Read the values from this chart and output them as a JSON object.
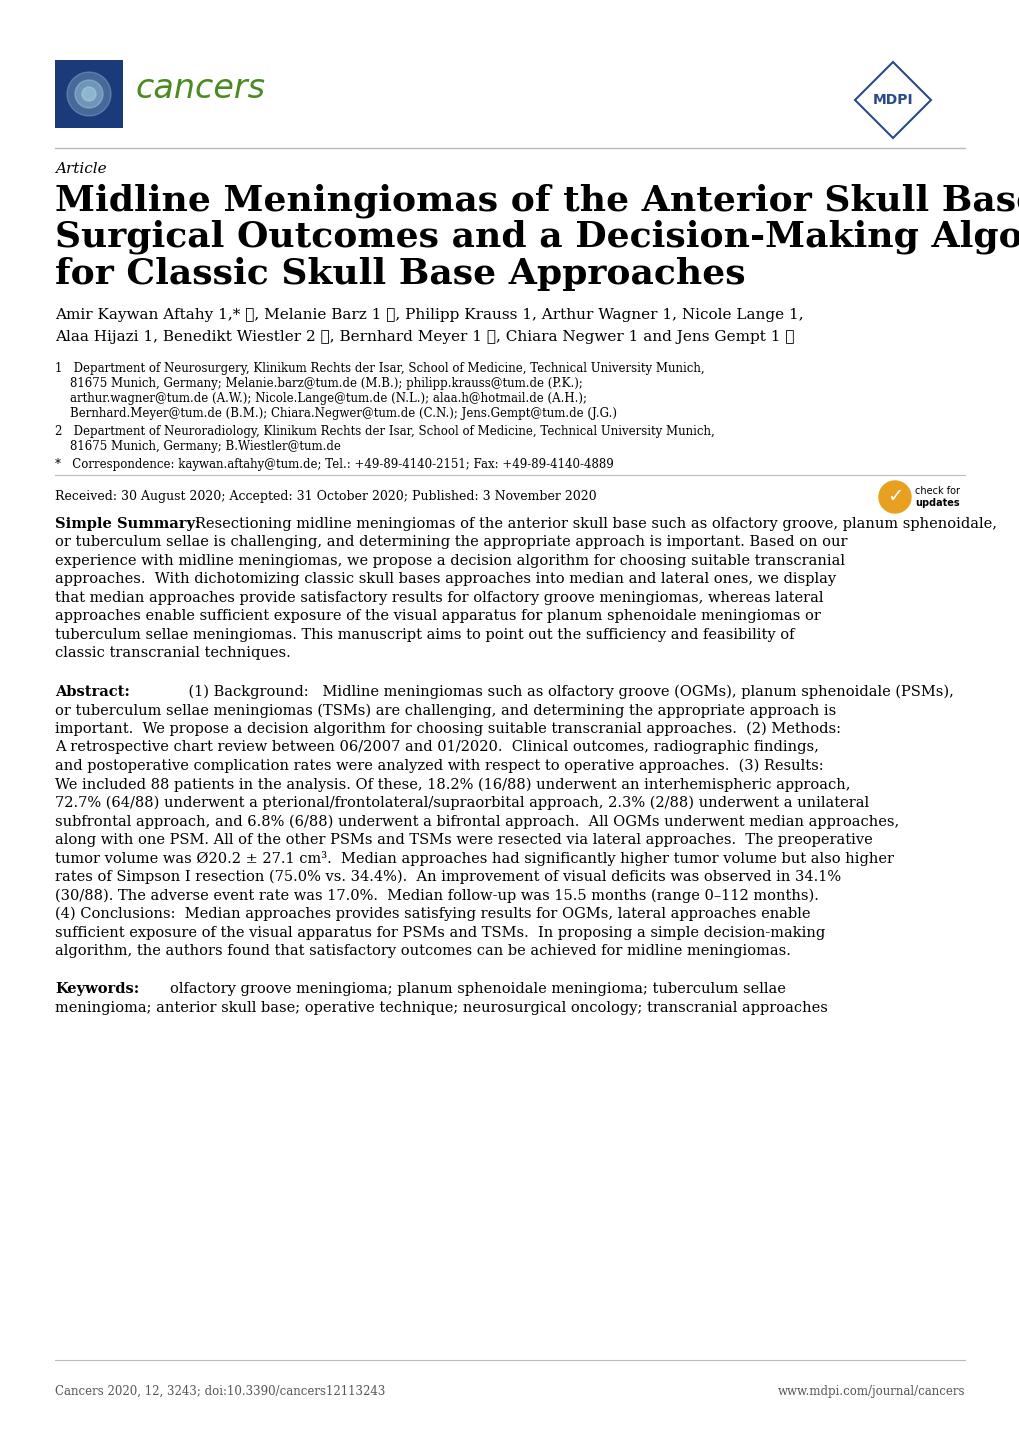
{
  "title_article": "Article",
  "title_line1": "Midline Meningiomas of the Anterior Skull Base:",
  "title_line2": "Surgical Outcomes and a Decision-Making Algorithm",
  "title_line3": "for Classic Skull Base Approaches",
  "authors_line1": "Amir Kaywan Aftahy 1,* ⓘ, Melanie Barz 1 ⓘ, Philipp Krauss 1, Arthur Wagner 1, Nicole Lange 1,",
  "authors_line2": "Alaa Hijazi 1, Benedikt Wiestler 2 ⓘ, Bernhard Meyer 1 ⓘ, Chiara Negwer 1 and Jens Gempt 1 ⓘ",
  "affil1_line1": "1   Department of Neurosurgery, Klinikum Rechts der Isar, School of Medicine, Technical University Munich,",
  "affil1_line2": "    81675 Munich, Germany; Melanie.barz@tum.de (M.B.); philipp.krauss@tum.de (P.K.);",
  "affil1_line3": "    arthur.wagner@tum.de (A.W.); Nicole.Lange@tum.de (N.L.); alaa.h@hotmail.de (A.H.);",
  "affil1_line4": "    Bernhard.Meyer@tum.de (B.M.); Chiara.Negwer@tum.de (C.N.); Jens.Gempt@tum.de (J.G.)",
  "affil2_line1": "2   Department of Neuroradiology, Klinikum Rechts der Isar, School of Medicine, Technical University Munich,",
  "affil2_line2": "    81675 Munich, Germany; B.Wiestler@tum.de",
  "affil3": "*   Correspondence: kaywan.aftahy@tum.de; Tel.: +49-89-4140-2151; Fax: +49-89-4140-4889",
  "received": "Received: 30 August 2020; Accepted: 31 October 2020; Published: 3 November 2020",
  "simple_summary_label": "Simple Summary:",
  "simple_summary_lines": [
    "Resectioning midline meningiomas of the anterior skull base such as olfactory groove, planum sphenoidale,",
    "or tuberculum sellae is challenging, and determining the appropriate approach is important. Based on our",
    "experience with midline meningiomas, we propose a decision algorithm for choosing suitable transcranial",
    "approaches.  With dichotomizing classic skull bases approaches into median and lateral ones, we display",
    "that median approaches provide satisfactory results for olfactory groove meningiomas, whereas lateral",
    "approaches enable sufficient exposure of the visual apparatus for planum sphenoidale meningiomas or",
    "tuberculum sellae meningiomas. This manuscript aims to point out the sufficiency and feasibility of",
    "classic transcranial techniques."
  ],
  "abstract_label": "Abstract:",
  "abstract_lines": [
    "    (1) Background:   Midline meningiomas such as olfactory groove (OGMs), planum sphenoidale (PSMs),",
    "or tuberculum sellae meningiomas (TSMs) are challenging, and determining the appropriate approach is",
    "important.  We propose a decision algorithm for choosing suitable transcranial approaches.  (2) Methods:",
    "A retrospective chart review between 06/2007 and 01/2020.  Clinical outcomes, radiographic findings,",
    "and postoperative complication rates were analyzed with respect to operative approaches.  (3) Results:",
    "We included 88 patients in the analysis. Of these, 18.2% (16/88) underwent an interhemispheric approach,",
    "72.7% (64/88) underwent a pterional/frontolateral/supraorbital approach, 2.3% (2/88) underwent a unilateral",
    "subfrontal approach, and 6.8% (6/88) underwent a bifrontal approach.  All OGMs underwent median approaches,",
    "along with one PSM. All of the other PSMs and TSMs were resected via lateral approaches.  The preoperative",
    "tumor volume was Ø20.2 ± 27.1 cm³.  Median approaches had significantly higher tumor volume but also higher",
    "rates of Simpson I resection (75.0% vs. 34.4%).  An improvement of visual deficits was observed in 34.1%",
    "(30/88). The adverse event rate was 17.0%.  Median follow-up was 15.5 months (range 0–112 months).",
    "(4) Conclusions:  Median approaches provides satisfying results for OGMs, lateral approaches enable",
    "sufficient exposure of the visual apparatus for PSMs and TSMs.  In proposing a simple decision-making",
    "algorithm, the authors found that satisfactory outcomes can be achieved for midline meningiomas."
  ],
  "keywords_label": "Keywords:",
  "keywords_line1": "olfactory groove meningioma; planum sphenoidale meningioma; tuberculum sellae",
  "keywords_line2": "meningioma; anterior skull base; operative technique; neurosurgical oncology; transcranial approaches",
  "footer_left": "Cancers 2020, 12, 3243; doi:10.3390/cancers12113243",
  "footer_right": "www.mdpi.com/journal/cancers",
  "bg_color": "#ffffff",
  "cancers_logo_color": "#1a3a7a",
  "cancers_text_color": "#4a8a20",
  "mdpi_color": "#2a4a8a",
  "line_color": "#bbbbbb",
  "gray_text": "#555555"
}
